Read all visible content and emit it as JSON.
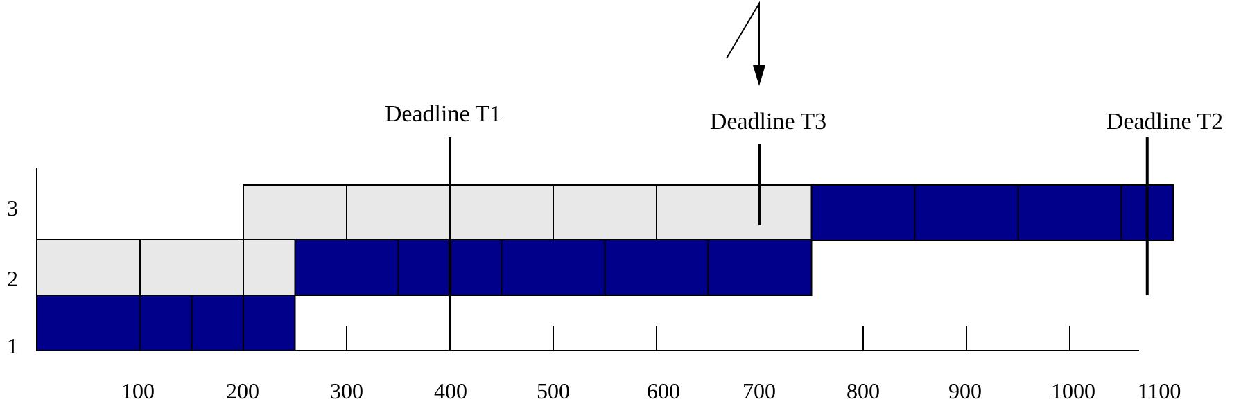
{
  "chart_data": {
    "type": "timeline",
    "y_labels": [
      "1",
      "2",
      "3"
    ],
    "x_ticks": [
      "100",
      "200",
      "300",
      "400",
      "500",
      "600",
      "700",
      "800",
      "900",
      "1000",
      "1100"
    ],
    "deadlines": [
      {
        "label": "Deadline T1",
        "time": 400
      },
      {
        "label": "Deadline T3",
        "time": 700
      },
      {
        "label": "Deadline T2",
        "time": 1075
      }
    ],
    "interrupt_time": 700,
    "colors": {
      "running": "#00008b",
      "waiting": "#e8e8e8",
      "line": "#000000"
    },
    "lanes": [
      {
        "level": 3,
        "segments": [
          {
            "start": 200,
            "end": 300,
            "state": "waiting"
          },
          {
            "start": 300,
            "end": 500,
            "state": "waiting"
          },
          {
            "start": 500,
            "end": 600,
            "state": "waiting"
          },
          {
            "start": 600,
            "end": 750,
            "state": "waiting"
          },
          {
            "start": 750,
            "end": 850,
            "state": "running"
          },
          {
            "start": 850,
            "end": 950,
            "state": "running"
          },
          {
            "start": 950,
            "end": 1050,
            "state": "running"
          },
          {
            "start": 1050,
            "end": 1100,
            "state": "running"
          }
        ]
      },
      {
        "level": 2,
        "segments": [
          {
            "start": 0,
            "end": 100,
            "state": "waiting"
          },
          {
            "start": 100,
            "end": 200,
            "state": "waiting"
          },
          {
            "start": 200,
            "end": 250,
            "state": "waiting"
          },
          {
            "start": 250,
            "end": 350,
            "state": "running"
          },
          {
            "start": 350,
            "end": 450,
            "state": "running"
          },
          {
            "start": 450,
            "end": 550,
            "state": "running"
          },
          {
            "start": 550,
            "end": 650,
            "state": "running"
          },
          {
            "start": 650,
            "end": 750,
            "state": "running"
          }
        ]
      },
      {
        "level": 1,
        "segments": [
          {
            "start": 0,
            "end": 100,
            "state": "running"
          },
          {
            "start": 100,
            "end": 150,
            "state": "running"
          },
          {
            "start": 150,
            "end": 200,
            "state": "running"
          },
          {
            "start": 200,
            "end": 250,
            "state": "running"
          }
        ]
      }
    ]
  }
}
